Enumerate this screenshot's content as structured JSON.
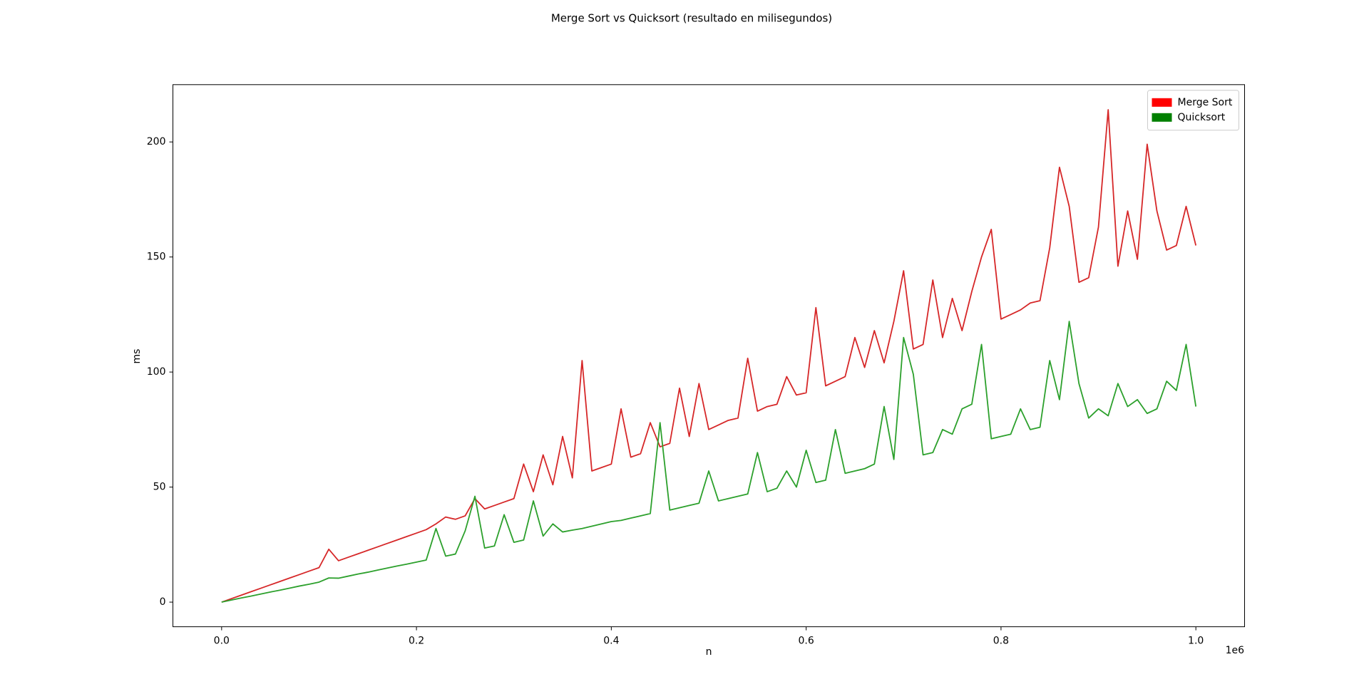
{
  "chart_data": {
    "type": "line",
    "title": "Merge Sort vs Quicksort (resultado en milisegundos)",
    "xlabel": "n",
    "ylabel": "ms",
    "x_offset_label": "1e6",
    "x": [
      0,
      10000,
      20000,
      30000,
      40000,
      50000,
      60000,
      70000,
      80000,
      90000,
      100000,
      110000,
      120000,
      130000,
      140000,
      150000,
      160000,
      170000,
      180000,
      190000,
      200000,
      210000,
      220000,
      230000,
      240000,
      250000,
      260000,
      270000,
      280000,
      290000,
      300000,
      310000,
      320000,
      330000,
      340000,
      350000,
      360000,
      370000,
      380000,
      390000,
      400000,
      410000,
      420000,
      430000,
      440000,
      450000,
      460000,
      470000,
      480000,
      490000,
      500000,
      510000,
      520000,
      530000,
      540000,
      550000,
      560000,
      570000,
      580000,
      590000,
      600000,
      610000,
      620000,
      630000,
      640000,
      650000,
      660000,
      670000,
      680000,
      690000,
      700000,
      710000,
      720000,
      730000,
      740000,
      750000,
      760000,
      770000,
      780000,
      790000,
      800000,
      810000,
      820000,
      830000,
      840000,
      850000,
      860000,
      870000,
      880000,
      890000,
      900000,
      910000,
      920000,
      930000,
      940000,
      950000,
      960000,
      970000,
      980000,
      990000,
      1000000
    ],
    "series": [
      {
        "name": "Merge Sort",
        "color": "#d62728",
        "patch_color": "#ff0000",
        "values": [
          0,
          1.5,
          3,
          4.5,
          6,
          7.5,
          9,
          10.5,
          12,
          13.5,
          15,
          23,
          18,
          19.5,
          21,
          22.5,
          24,
          25.5,
          27,
          28.5,
          30,
          31.5,
          34,
          37,
          36,
          37.5,
          45,
          40.5,
          42,
          43.5,
          45,
          60,
          48,
          64,
          51,
          72,
          54,
          105,
          57,
          58.5,
          60,
          84,
          63,
          64.5,
          78,
          67.5,
          69,
          93,
          72,
          95,
          75,
          77,
          79,
          80,
          106,
          83,
          85,
          86,
          98,
          90,
          91,
          128,
          94,
          96,
          98,
          115,
          102,
          118,
          104,
          122,
          144,
          110,
          112,
          140,
          115,
          132,
          118,
          135,
          150,
          162,
          123,
          125,
          127,
          130,
          131,
          154,
          189,
          172,
          139,
          141,
          163,
          214,
          146,
          170,
          149,
          199,
          170,
          153,
          155,
          172,
          155
        ]
      },
      {
        "name": "Quicksort",
        "color": "#2ca02c",
        "patch_color": "#008000",
        "values": [
          0,
          0.9,
          1.8,
          2.6,
          3.5,
          4.4,
          5.2,
          6.1,
          7,
          7.8,
          8.7,
          10.5,
          10.4,
          11.3,
          12.2,
          13,
          13.9,
          14.8,
          15.7,
          16.5,
          17.4,
          18.3,
          32,
          20,
          20.9,
          31,
          46,
          23.5,
          24.4,
          38,
          26,
          27,
          44,
          28.7,
          34,
          30.5,
          31.3,
          32,
          33,
          34,
          35,
          35.5,
          36.5,
          37.5,
          38.5,
          78,
          40,
          41,
          42,
          43,
          57,
          44,
          45,
          46,
          47,
          65,
          48,
          49.5,
          57,
          50,
          66,
          52,
          53,
          75,
          56,
          57,
          58,
          60,
          85,
          62,
          115,
          99,
          64,
          65,
          75,
          73,
          84,
          86,
          112,
          71,
          72,
          73,
          84,
          75,
          76,
          105,
          88,
          122,
          95,
          80,
          84,
          81,
          95,
          85,
          88,
          82,
          84,
          96,
          92,
          112,
          85
        ]
      }
    ],
    "xlim": [
      -50000,
      1050000
    ],
    "ylim": [
      -10.7,
      224.9
    ],
    "xticks": [
      {
        "value": 0,
        "label": "0.0"
      },
      {
        "value": 200000,
        "label": "0.2"
      },
      {
        "value": 400000,
        "label": "0.4"
      },
      {
        "value": 600000,
        "label": "0.6"
      },
      {
        "value": 800000,
        "label": "0.8"
      },
      {
        "value": 1000000,
        "label": "1.0"
      }
    ],
    "yticks": [
      0,
      50,
      100,
      150,
      200
    ],
    "legend": "upper right",
    "grid": false
  }
}
